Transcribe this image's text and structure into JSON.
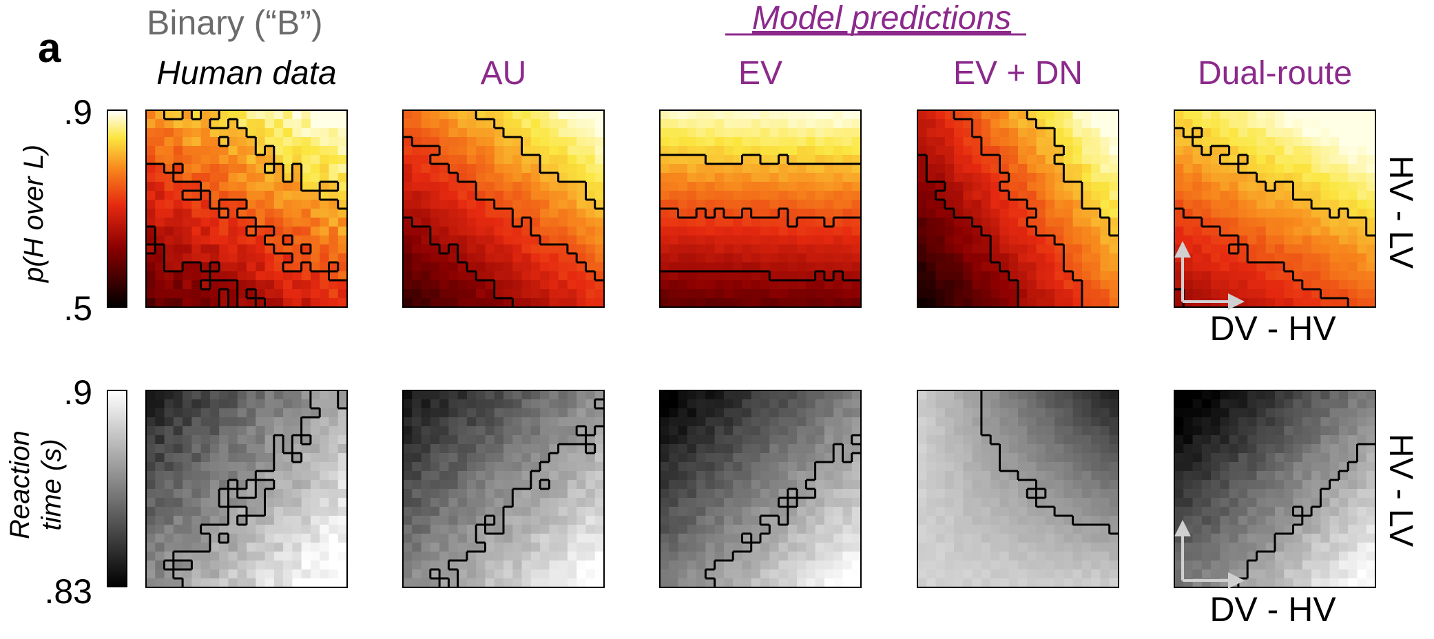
{
  "panel_letter": "a",
  "binary_label": "Binary (“B”)",
  "model_predictions_label": "Model predictions",
  "colors": {
    "purple": "#8c2a8c",
    "gray_text": "#6b6b6b",
    "black": "#000000",
    "arrow": "#d0d0d0"
  },
  "columns": [
    {
      "title": "Human data",
      "italic": true,
      "color": "black"
    },
    {
      "title": "AU",
      "italic": false,
      "color": "purple"
    },
    {
      "title": "EV",
      "italic": false,
      "color": "purple"
    },
    {
      "title": "EV + DN",
      "italic": false,
      "color": "purple"
    },
    {
      "title": "Dual-route",
      "italic": false,
      "color": "purple"
    }
  ],
  "rows": [
    {
      "name": "p_h_over_l",
      "colormap": "hot",
      "colorbar": {
        "label": "p(H over L)",
        "top_tick": ".9",
        "bottom_tick": ".5",
        "range": [
          0.5,
          0.9
        ]
      },
      "right_label": "HV - LV",
      "bottom_axis_label": "DV - HV"
    },
    {
      "name": "reaction_time",
      "colormap": "gray",
      "colorbar": {
        "label_line1": "Reaction",
        "label_line2": "time (s)",
        "top_tick": ".9",
        "bottom_tick": ".83",
        "range": [
          0.83,
          0.9
        ]
      },
      "right_label": "HV - LV",
      "bottom_axis_label": "DV - HV"
    }
  ],
  "chart_data": {
    "type": "heatmap",
    "description_rows": [
      "p(H over L)",
      "Reaction time (s)"
    ],
    "columns": [
      "Human data",
      "AU",
      "EV",
      "EV + DN",
      "Dual-route"
    ],
    "x_axis": "DV - HV",
    "y_axis": "HV - LV",
    "row1_range": [
      0.5,
      0.9
    ],
    "row2_range": [
      0.83,
      0.9
    ]
  }
}
